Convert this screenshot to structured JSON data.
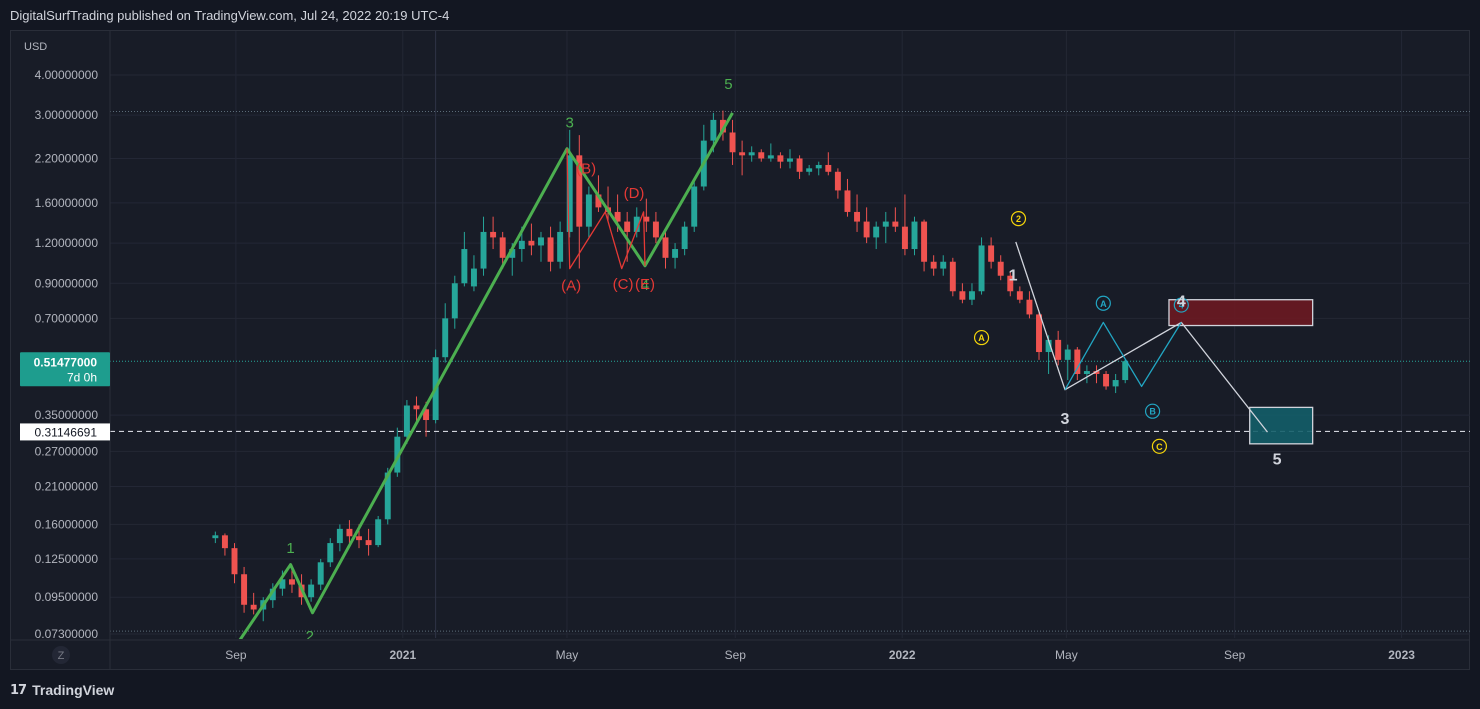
{
  "header": {
    "attribution": "DigitalSurfTrading published on TradingView.com, Jul 24, 2022 20:19 UTC-4"
  },
  "footer": {
    "brand": "TradingView",
    "logo_text": "17"
  },
  "axis_corner": {
    "zoom_label": "Z"
  },
  "price_labels": {
    "current_price": "0.51477000",
    "countdown": "7d 0h",
    "cursor_price": "0.31146691"
  },
  "colors": {
    "background": "#131722",
    "panel": "#181c27",
    "up": "#26a69a",
    "down": "#ef5350",
    "wave_green": "#4caf50",
    "wave_red": "#e53935",
    "wave_yellow": "#f5d50a",
    "wave_cyan": "#22a6c3",
    "wave_white": "#d1d4dc",
    "red_box": "#6b1a22",
    "teal_box": "#135e69"
  },
  "chart_data": {
    "type": "candlestick",
    "title": "",
    "ylabel": "USD",
    "y_scale": "log",
    "ylim": [
      0.073,
      5.2
    ],
    "xlim": [
      "2020-06-01",
      "2023-02-20"
    ],
    "x_ticks": [
      {
        "label": "Sep",
        "date": "2020-09-01"
      },
      {
        "label": "2021",
        "date": "2021-01-01"
      },
      {
        "label": "May",
        "date": "2021-05-01"
      },
      {
        "label": "Sep",
        "date": "2021-09-01"
      },
      {
        "label": "2022",
        "date": "2022-01-01"
      },
      {
        "label": "May",
        "date": "2022-05-01"
      },
      {
        "label": "Sep",
        "date": "2022-09-01"
      },
      {
        "label": "2023",
        "date": "2023-01-01"
      }
    ],
    "y_ticks": [
      "4.00000000",
      "3.00000000",
      "2.20000000",
      "1.60000000",
      "1.20000000",
      "0.90000000",
      "0.70000000",
      "0.35000000",
      "0.27000000",
      "0.21000000",
      "0.16000000",
      "0.12500000",
      "0.09500000",
      "0.07300000"
    ],
    "candles": {
      "start_date": "2020-08-17",
      "interval_days": 7,
      "ohlc": [
        [
          0.145,
          0.152,
          0.14,
          0.148
        ],
        [
          0.148,
          0.15,
          0.128,
          0.135
        ],
        [
          0.135,
          0.14,
          0.105,
          0.112
        ],
        [
          0.112,
          0.118,
          0.085,
          0.09
        ],
        [
          0.09,
          0.098,
          0.084,
          0.087
        ],
        [
          0.087,
          0.095,
          0.08,
          0.093
        ],
        [
          0.093,
          0.105,
          0.088,
          0.101
        ],
        [
          0.101,
          0.115,
          0.096,
          0.108
        ],
        [
          0.108,
          0.118,
          0.098,
          0.104
        ],
        [
          0.104,
          0.112,
          0.09,
          0.095
        ],
        [
          0.095,
          0.108,
          0.092,
          0.104
        ],
        [
          0.104,
          0.125,
          0.1,
          0.122
        ],
        [
          0.122,
          0.145,
          0.118,
          0.14
        ],
        [
          0.14,
          0.16,
          0.132,
          0.155
        ],
        [
          0.155,
          0.165,
          0.14,
          0.147
        ],
        [
          0.147,
          0.16,
          0.135,
          0.143
        ],
        [
          0.143,
          0.155,
          0.128,
          0.138
        ],
        [
          0.138,
          0.17,
          0.136,
          0.166
        ],
        [
          0.166,
          0.24,
          0.16,
          0.232
        ],
        [
          0.232,
          0.32,
          0.225,
          0.3
        ],
        [
          0.3,
          0.39,
          0.285,
          0.375
        ],
        [
          0.375,
          0.4,
          0.33,
          0.365
        ],
        [
          0.365,
          0.385,
          0.3,
          0.338
        ],
        [
          0.338,
          0.56,
          0.33,
          0.53
        ],
        [
          0.53,
          0.78,
          0.51,
          0.7
        ],
        [
          0.7,
          0.95,
          0.65,
          0.9
        ],
        [
          0.9,
          1.3,
          0.88,
          1.15
        ],
        [
          0.88,
          1.1,
          0.85,
          1.0
        ],
        [
          1.0,
          1.45,
          0.95,
          1.3
        ],
        [
          1.3,
          1.45,
          1.15,
          1.25
        ],
        [
          1.25,
          1.3,
          1.0,
          1.08
        ],
        [
          1.08,
          1.2,
          0.95,
          1.15
        ],
        [
          1.15,
          1.35,
          1.05,
          1.22
        ],
        [
          1.22,
          1.38,
          1.1,
          1.18
        ],
        [
          1.18,
          1.3,
          1.05,
          1.25
        ],
        [
          1.25,
          1.35,
          0.98,
          1.05
        ],
        [
          1.05,
          1.4,
          1.0,
          1.3
        ],
        [
          1.3,
          2.7,
          1.25,
          2.25
        ],
        [
          2.25,
          2.6,
          1.0,
          1.35
        ],
        [
          1.35,
          1.8,
          1.25,
          1.7
        ],
        [
          1.7,
          1.95,
          1.5,
          1.55
        ],
        [
          1.55,
          1.8,
          1.4,
          1.5
        ],
        [
          1.5,
          1.7,
          1.3,
          1.4
        ],
        [
          1.4,
          1.5,
          1.05,
          1.3
        ],
        [
          1.3,
          1.55,
          1.25,
          1.45
        ],
        [
          1.45,
          1.65,
          1.3,
          1.4
        ],
        [
          1.4,
          1.5,
          1.2,
          1.25
        ],
        [
          1.25,
          1.3,
          1.0,
          1.08
        ],
        [
          1.08,
          1.2,
          1.0,
          1.15
        ],
        [
          1.15,
          1.4,
          1.1,
          1.35
        ],
        [
          1.35,
          1.9,
          1.3,
          1.8
        ],
        [
          1.8,
          2.8,
          1.75,
          2.5
        ],
        [
          2.5,
          3.05,
          2.3,
          2.9
        ],
        [
          2.9,
          3.1,
          2.5,
          2.65
        ],
        [
          2.65,
          2.9,
          2.1,
          2.3
        ],
        [
          2.3,
          2.5,
          1.95,
          2.25
        ],
        [
          2.25,
          2.4,
          2.15,
          2.3
        ],
        [
          2.3,
          2.35,
          2.15,
          2.2
        ],
        [
          2.2,
          2.45,
          2.15,
          2.25
        ],
        [
          2.25,
          2.3,
          2.05,
          2.15
        ],
        [
          2.15,
          2.35,
          2.05,
          2.2
        ],
        [
          2.2,
          2.25,
          1.9,
          2.0
        ],
        [
          2.0,
          2.1,
          1.95,
          2.05
        ],
        [
          2.05,
          2.15,
          1.95,
          2.1
        ],
        [
          2.1,
          2.3,
          1.95,
          2.0
        ],
        [
          2.0,
          2.05,
          1.65,
          1.75
        ],
        [
          1.75,
          1.9,
          1.45,
          1.5
        ],
        [
          1.5,
          1.7,
          1.3,
          1.4
        ],
        [
          1.4,
          1.55,
          1.2,
          1.25
        ],
        [
          1.25,
          1.4,
          1.15,
          1.35
        ],
        [
          1.35,
          1.5,
          1.2,
          1.4
        ],
        [
          1.4,
          1.55,
          1.3,
          1.35
        ],
        [
          1.35,
          1.7,
          1.1,
          1.15
        ],
        [
          1.15,
          1.45,
          1.1,
          1.4
        ],
        [
          1.4,
          1.42,
          0.98,
          1.05
        ],
        [
          1.05,
          1.1,
          0.95,
          1.0
        ],
        [
          1.0,
          1.1,
          0.95,
          1.05
        ],
        [
          1.05,
          1.08,
          0.82,
          0.85
        ],
        [
          0.85,
          0.9,
          0.78,
          0.8
        ],
        [
          0.8,
          0.9,
          0.77,
          0.85
        ],
        [
          0.85,
          1.25,
          0.83,
          1.18
        ],
        [
          1.18,
          1.25,
          1.0,
          1.05
        ],
        [
          1.05,
          1.1,
          0.92,
          0.95
        ],
        [
          0.95,
          0.98,
          0.82,
          0.85
        ],
        [
          0.85,
          0.88,
          0.78,
          0.8
        ],
        [
          0.8,
          0.85,
          0.7,
          0.72
        ],
        [
          0.72,
          0.74,
          0.52,
          0.55
        ],
        [
          0.55,
          0.62,
          0.47,
          0.6
        ],
        [
          0.6,
          0.64,
          0.5,
          0.52
        ],
        [
          0.52,
          0.58,
          0.45,
          0.56
        ],
        [
          0.56,
          0.57,
          0.45,
          0.47
        ],
        [
          0.47,
          0.5,
          0.44,
          0.48
        ],
        [
          0.48,
          0.5,
          0.44,
          0.47
        ],
        [
          0.47,
          0.48,
          0.42,
          0.43
        ],
        [
          0.43,
          0.47,
          0.41,
          0.45
        ],
        [
          0.45,
          0.52,
          0.44,
          0.515
        ]
      ]
    },
    "wave_counts": [
      {
        "color": "wave_green",
        "width": 3,
        "points": [
          [
            "2020-09-03",
            0.069
          ],
          [
            "2020-10-11",
            0.12
          ],
          [
            "2020-10-27",
            0.085
          ],
          [
            "2021-05-01",
            2.36
          ],
          [
            "2021-06-27",
            1.02
          ],
          [
            "2021-08-30",
            3.05
          ]
        ]
      },
      {
        "color": "wave_red",
        "width": 1.3,
        "points": [
          [
            "2021-05-01",
            2.36
          ],
          [
            "2021-05-03",
            1.0
          ],
          [
            "2021-05-29",
            1.5
          ],
          [
            "2021-06-10",
            1.0
          ],
          [
            "2021-06-26",
            1.5
          ],
          [
            "2021-06-27",
            1.02
          ]
        ]
      },
      {
        "color": "wave_white",
        "width": 1.3,
        "points": [
          [
            "2022-03-25",
            1.21
          ],
          [
            "2022-04-30",
            0.42
          ],
          [
            "2022-07-24",
            0.68
          ],
          [
            "2022-09-25",
            0.31
          ]
        ]
      },
      {
        "color": "wave_cyan",
        "width": 1.3,
        "points": [
          [
            "2022-04-30",
            0.42
          ],
          [
            "2022-05-28",
            0.68
          ],
          [
            "2022-06-25",
            0.43
          ],
          [
            "2022-07-24",
            0.68
          ]
        ]
      }
    ],
    "wave_labels": [
      {
        "text": "1",
        "date": "2020-10-11",
        "price": 0.135,
        "color": "wave_green",
        "circled": false
      },
      {
        "text": "2",
        "date": "2020-10-25",
        "price": 0.072,
        "color": "wave_green",
        "circled": false
      },
      {
        "text": "3",
        "date": "2021-05-03",
        "price": 2.85,
        "color": "wave_green",
        "circled": false
      },
      {
        "text": "4",
        "date": "2021-06-27",
        "price": 0.89,
        "color": "wave_green",
        "circled": false
      },
      {
        "text": "5",
        "date": "2021-08-27",
        "price": 3.75,
        "color": "wave_green",
        "circled": false
      },
      {
        "text": "(A)",
        "date": "2021-05-04",
        "price": 0.885,
        "color": "wave_red",
        "circled": false
      },
      {
        "text": "(B)",
        "date": "2021-05-15",
        "price": 2.05,
        "color": "wave_red",
        "circled": false
      },
      {
        "text": "(C)",
        "date": "2021-06-11",
        "price": 0.895,
        "color": "wave_red",
        "circled": false
      },
      {
        "text": "(D)",
        "date": "2021-06-19",
        "price": 1.72,
        "color": "wave_red",
        "circled": false
      },
      {
        "text": "(E)",
        "date": "2021-06-27",
        "price": 0.895,
        "color": "wave_red",
        "circled": false
      },
      {
        "text": "2",
        "date": "2022-03-27",
        "price": 1.43,
        "color": "wave_yellow",
        "circled": true
      },
      {
        "text": "A",
        "date": "2022-02-28",
        "price": 0.61,
        "color": "wave_yellow",
        "circled": true
      },
      {
        "text": "C",
        "date": "2022-07-08",
        "price": 0.28,
        "color": "wave_yellow",
        "circled": true
      },
      {
        "text": "A",
        "date": "2022-05-28",
        "price": 0.78,
        "color": "wave_cyan",
        "circled": true
      },
      {
        "text": "B",
        "date": "2022-07-03",
        "price": 0.36,
        "color": "wave_cyan",
        "circled": true
      },
      {
        "text": "4",
        "date": "2022-07-24",
        "price": 0.77,
        "color": "wave_cyan",
        "circled": true
      },
      {
        "text": "1",
        "date": "2022-03-23",
        "price": 0.95,
        "color": "wave_white",
        "circled": false
      },
      {
        "text": "3",
        "date": "2022-04-30",
        "price": 0.34,
        "color": "wave_white",
        "circled": false
      },
      {
        "text": "4",
        "date": "2022-07-24",
        "price": 0.79,
        "color": "wave_white",
        "circled": false
      },
      {
        "text": "5",
        "date": "2022-10-02",
        "price": 0.255,
        "color": "wave_white",
        "circled": false
      }
    ],
    "zones": [
      {
        "name": "resistance",
        "start": "2022-07-15",
        "end": "2022-10-28",
        "high": 0.8,
        "low": 0.665,
        "fill": "red_box"
      },
      {
        "name": "target",
        "start": "2022-09-12",
        "end": "2022-10-28",
        "high": 0.37,
        "low": 0.285,
        "fill": "teal_box"
      }
    ],
    "horizontal_lines": [
      {
        "price": 3.08,
        "style": "dotted",
        "color": "#5b6b78"
      },
      {
        "price": 0.0745,
        "style": "dotted",
        "color": "#5b6b78"
      },
      {
        "price": 0.51477,
        "style": "dotted",
        "color": "#26a69a"
      },
      {
        "price": 0.31146691,
        "style": "dashed",
        "color": "#d1d4dc"
      }
    ],
    "cursor_date": "2021-01-25"
  }
}
